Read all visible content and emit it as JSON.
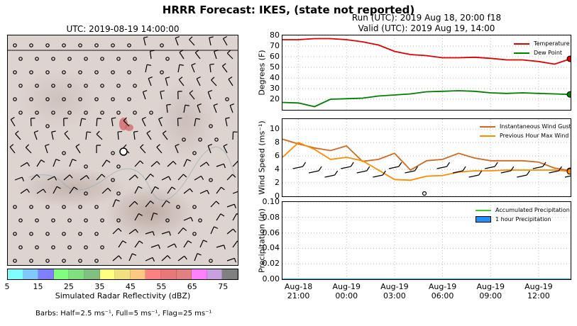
{
  "title": "HRRR Forecast: IKES, (state not reported)",
  "map": {
    "title": "UTC: 2019-08-19 14:00:00",
    "colorbar": {
      "label": "Simulated Radar Reflectivity (dBZ)",
      "ticks": [
        "5",
        "15",
        "25",
        "35",
        "45",
        "55",
        "65",
        "75"
      ],
      "colors": [
        "#80ffff",
        "#80c8ff",
        "#8080ff",
        "#80ff80",
        "#80e080",
        "#80c080",
        "#ffff80",
        "#f0e080",
        "#ffc880",
        "#ff8080",
        "#e87878",
        "#e08080",
        "#ff80ff",
        "#c8a0e0",
        "#808080"
      ]
    },
    "barb_note": "Barbs: Half=2.5 ms⁻¹, Full=5 ms⁻¹, Flag=25 ms⁻¹"
  },
  "run": {
    "line1": "Run (UTC): 2019 Aug 18, 20:00 f18",
    "line2": "Valid (UTC): 2019 Aug 19, 14:00"
  },
  "x_ticks": [
    {
      "top": "Aug-18",
      "bottom": "21:00"
    },
    {
      "top": "Aug-19",
      "bottom": "00:00"
    },
    {
      "top": "Aug-19",
      "bottom": "03:00"
    },
    {
      "top": "Aug-19",
      "bottom": "06:00"
    },
    {
      "top": "Aug-19",
      "bottom": "09:00"
    },
    {
      "top": "Aug-19",
      "bottom": "12:00"
    }
  ],
  "chart_data": [
    {
      "type": "line",
      "ylabel": "Degrees (F)",
      "ylim": [
        10,
        80
      ],
      "yticks": [
        "80",
        "70",
        "60",
        "50",
        "40",
        "30",
        "20"
      ],
      "x_hours_utc_aug18": [
        20,
        21,
        22,
        23,
        24,
        25,
        26,
        27,
        28,
        29,
        30,
        31,
        32,
        33,
        34,
        35,
        36,
        37,
        38
      ],
      "series": [
        {
          "name": "Temperature",
          "color": "#e00000",
          "values": [
            76,
            76,
            77,
            77,
            76,
            74,
            71,
            65,
            62,
            61,
            59,
            59,
            59.5,
            58.5,
            57,
            57,
            55.5,
            53,
            58
          ]
        },
        {
          "name": "Dew Point",
          "color": "#008000",
          "values": [
            17,
            16.5,
            13,
            20,
            20.5,
            21,
            23,
            24,
            25,
            27,
            27.5,
            28,
            27.5,
            26,
            25.5,
            26,
            25.5,
            25,
            24.5
          ]
        }
      ],
      "legend": "top-right",
      "grid": true
    },
    {
      "type": "line",
      "ylabel": "Wind Speed (ms⁻¹)",
      "ylim": [
        0,
        11.5
      ],
      "yticks": [
        "10",
        "8",
        "6",
        "4",
        "2",
        "0"
      ],
      "x_hours_utc_aug18": [
        20,
        21,
        22,
        23,
        24,
        25,
        26,
        27,
        28,
        29,
        30,
        31,
        32,
        33,
        34,
        35,
        36,
        37,
        38
      ],
      "series": [
        {
          "name": "Instantaneous Wind Gust",
          "color": "#d2691e",
          "values": [
            8.5,
            7.8,
            7.2,
            6.8,
            7.5,
            5.2,
            5.5,
            6.4,
            3.9,
            5.3,
            5.5,
            6.4,
            5.7,
            5.3,
            5.3,
            5.3,
            5.1,
            4.2,
            3.8
          ]
        },
        {
          "name": "Previous Hour Max Wind",
          "color": "#ff8c00",
          "values": [
            5.8,
            8.0,
            7.0,
            5.5,
            5.8,
            5.3,
            3.9,
            2.5,
            2.4,
            3.0,
            3.1,
            3.6,
            3.8,
            3.8,
            3.9,
            3.9,
            3.9,
            3.9,
            3.7
          ]
        }
      ],
      "legend": "top-right",
      "grid": true
    },
    {
      "type": "line",
      "ylabel": "Precipitation (in)",
      "ylim": [
        0,
        0.1
      ],
      "yticks": [
        "0.10",
        "0.08",
        "0.06",
        "0.04",
        "0.02",
        "0.00"
      ],
      "x_hours_utc_aug18": [
        20,
        21,
        22,
        23,
        24,
        25,
        26,
        27,
        28,
        29,
        30,
        31,
        32,
        33,
        34,
        35,
        36,
        37,
        38
      ],
      "series": [
        {
          "name": "Accumulated Precipitation",
          "color": "#32cd32",
          "values": [
            0,
            0,
            0,
            0,
            0,
            0,
            0,
            0,
            0,
            0,
            0,
            0,
            0,
            0,
            0,
            0,
            0,
            0,
            0
          ]
        },
        {
          "name": "1 hour Precipitation",
          "color": "#1e90ff",
          "values": [
            0,
            0,
            0,
            0,
            0,
            0,
            0,
            0,
            0,
            0,
            0,
            0,
            0,
            0,
            0,
            0,
            0,
            0,
            0
          ]
        }
      ],
      "legend": "top-right",
      "grid": true
    }
  ]
}
